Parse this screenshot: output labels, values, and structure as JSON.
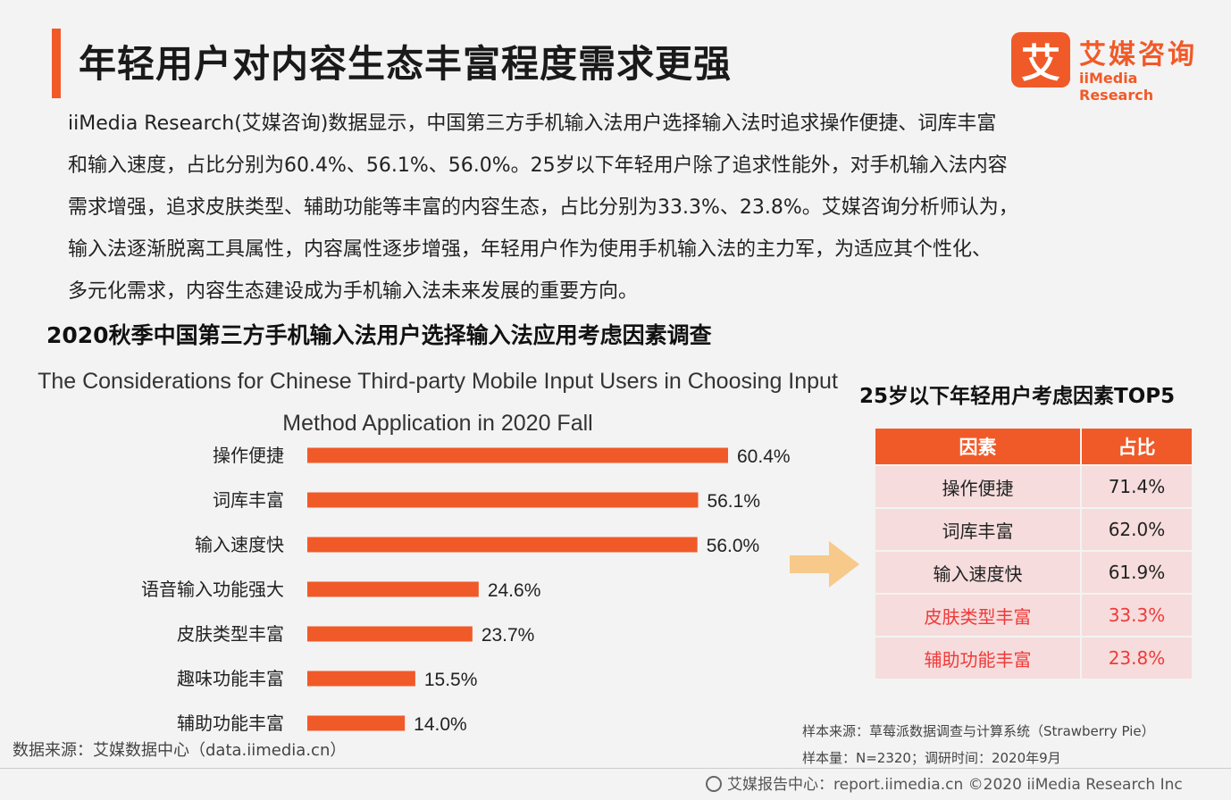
{
  "header": {
    "title": "年轻用户对内容生态丰富程度需求更强",
    "logo_mark": "艾",
    "logo_cn": "艾媒咨询",
    "logo_en": "iiMedia Research"
  },
  "intro": [
    "iiMedia  Research(艾媒咨询)数据显示，中国第三方手机输入法用户选择输入法时追求操作便捷、词库丰富",
    "和输入速度，占比分别为60.4%、56.1%、56.0%。25岁以下年轻用户除了追求性能外，对手机输入法内容",
    "需求增强，追求皮肤类型、辅助功能等丰富的内容生态，占比分别为33.3%、23.8%。艾媒咨询分析师认为，",
    "输入法逐渐脱离工具属性，内容属性逐步增强，年轻用户作为使用手机输入法的主力军，为适应其个性化、",
    "多元化需求，内容生态建设成为手机输入法未来发展的重要方向。"
  ],
  "chart_data": [
    {
      "type": "bar",
      "orientation": "horizontal",
      "title": "2020秋季中国第三方手机输入法用户选择输入法应用考虑因素调查",
      "subtitle": "The Considerations for Chinese Third-party Mobile Input Users in Choosing Input Method Application in 2020 Fall",
      "categories": [
        "操作便捷",
        "词库丰富",
        "输入速度快",
        "语音输入功能强大",
        "皮肤类型丰富",
        "趣味功能丰富",
        "辅助功能丰富"
      ],
      "values": [
        60.4,
        56.1,
        56.0,
        24.6,
        23.7,
        15.5,
        14.0
      ],
      "value_labels": [
        "60.4%",
        "56.1%",
        "56.0%",
        "24.6%",
        "23.7%",
        "15.5%",
        "14.0%"
      ],
      "unit": "%",
      "xlim": [
        0,
        60.4
      ],
      "color": "#f05a28",
      "grid": false
    },
    {
      "type": "table",
      "title": "25岁以下年轻用户考虑因素TOP5",
      "columns": [
        "因素",
        "占比"
      ],
      "rows": [
        {
          "factor": "操作便捷",
          "share": "71.4%",
          "highlight": false
        },
        {
          "factor": "词库丰富",
          "share": "62.0%",
          "highlight": false
        },
        {
          "factor": "输入速度快",
          "share": "61.9%",
          "highlight": false
        },
        {
          "factor": "皮肤类型丰富",
          "share": "33.3%",
          "highlight": true
        },
        {
          "factor": "辅助功能丰富",
          "share": "23.8%",
          "highlight": true
        }
      ],
      "header_color": "#f05a28",
      "cell_color": "#f6dcdc",
      "highlight_color": "#f03a3a"
    }
  ],
  "source": "数据来源：艾媒数据中心（data.iimedia.cn）",
  "sample_source": "样本来源：草莓派数据调查与计算系统（Strawberry Pie）",
  "sample_size": "样本量：N=2320；调研时间：2020年9月",
  "footer": "艾媒报告中心：report.iimedia.cn    ©2020  iiMedia Research  Inc"
}
